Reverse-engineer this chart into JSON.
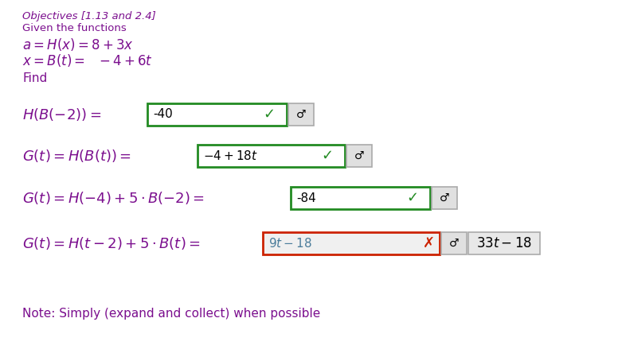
{
  "bg_color": "#ffffff",
  "purple": "#7B0E8E",
  "green_border": "#228B22",
  "green_check": "#228B22",
  "red_border": "#CC2200",
  "red_x": "#CC2200",
  "gray_bg": "#e0e0e0",
  "gray_border": "#aaaaaa",
  "row4_box_bg": "#f0f0f0",
  "row4_text_color": "#4a7c9a",
  "correct_answer_box_bg": "#e8e8e8",
  "objectives": "Objectives [1.13 and 2.4]",
  "given": "Given the functions",
  "func_a": "$a = H(x) = 8 + 3x$",
  "func_b": "$x = B(t) = \\ -4 + 6t$",
  "find": "Find",
  "note": "Note: Simply (expand and collect) when possible",
  "row1_label": "$H(B(-2)) = $",
  "row1_answer": "-40",
  "row1_correct": true,
  "row2_label": "$G(t) = H(B(t)) = $",
  "row2_answer": "$-4 + 18t$",
  "row2_correct": true,
  "row3_label": "$G(t) = H(-4) + 5 \\cdot B(-2) = $",
  "row3_answer": "-84",
  "row3_correct": true,
  "row4_label": "$G(t) = H(t-2) + 5 \\cdot B(t) = $",
  "row4_answer": "$9t-18$",
  "row4_correct": false,
  "row4_correct_answer": "$33t-18$"
}
